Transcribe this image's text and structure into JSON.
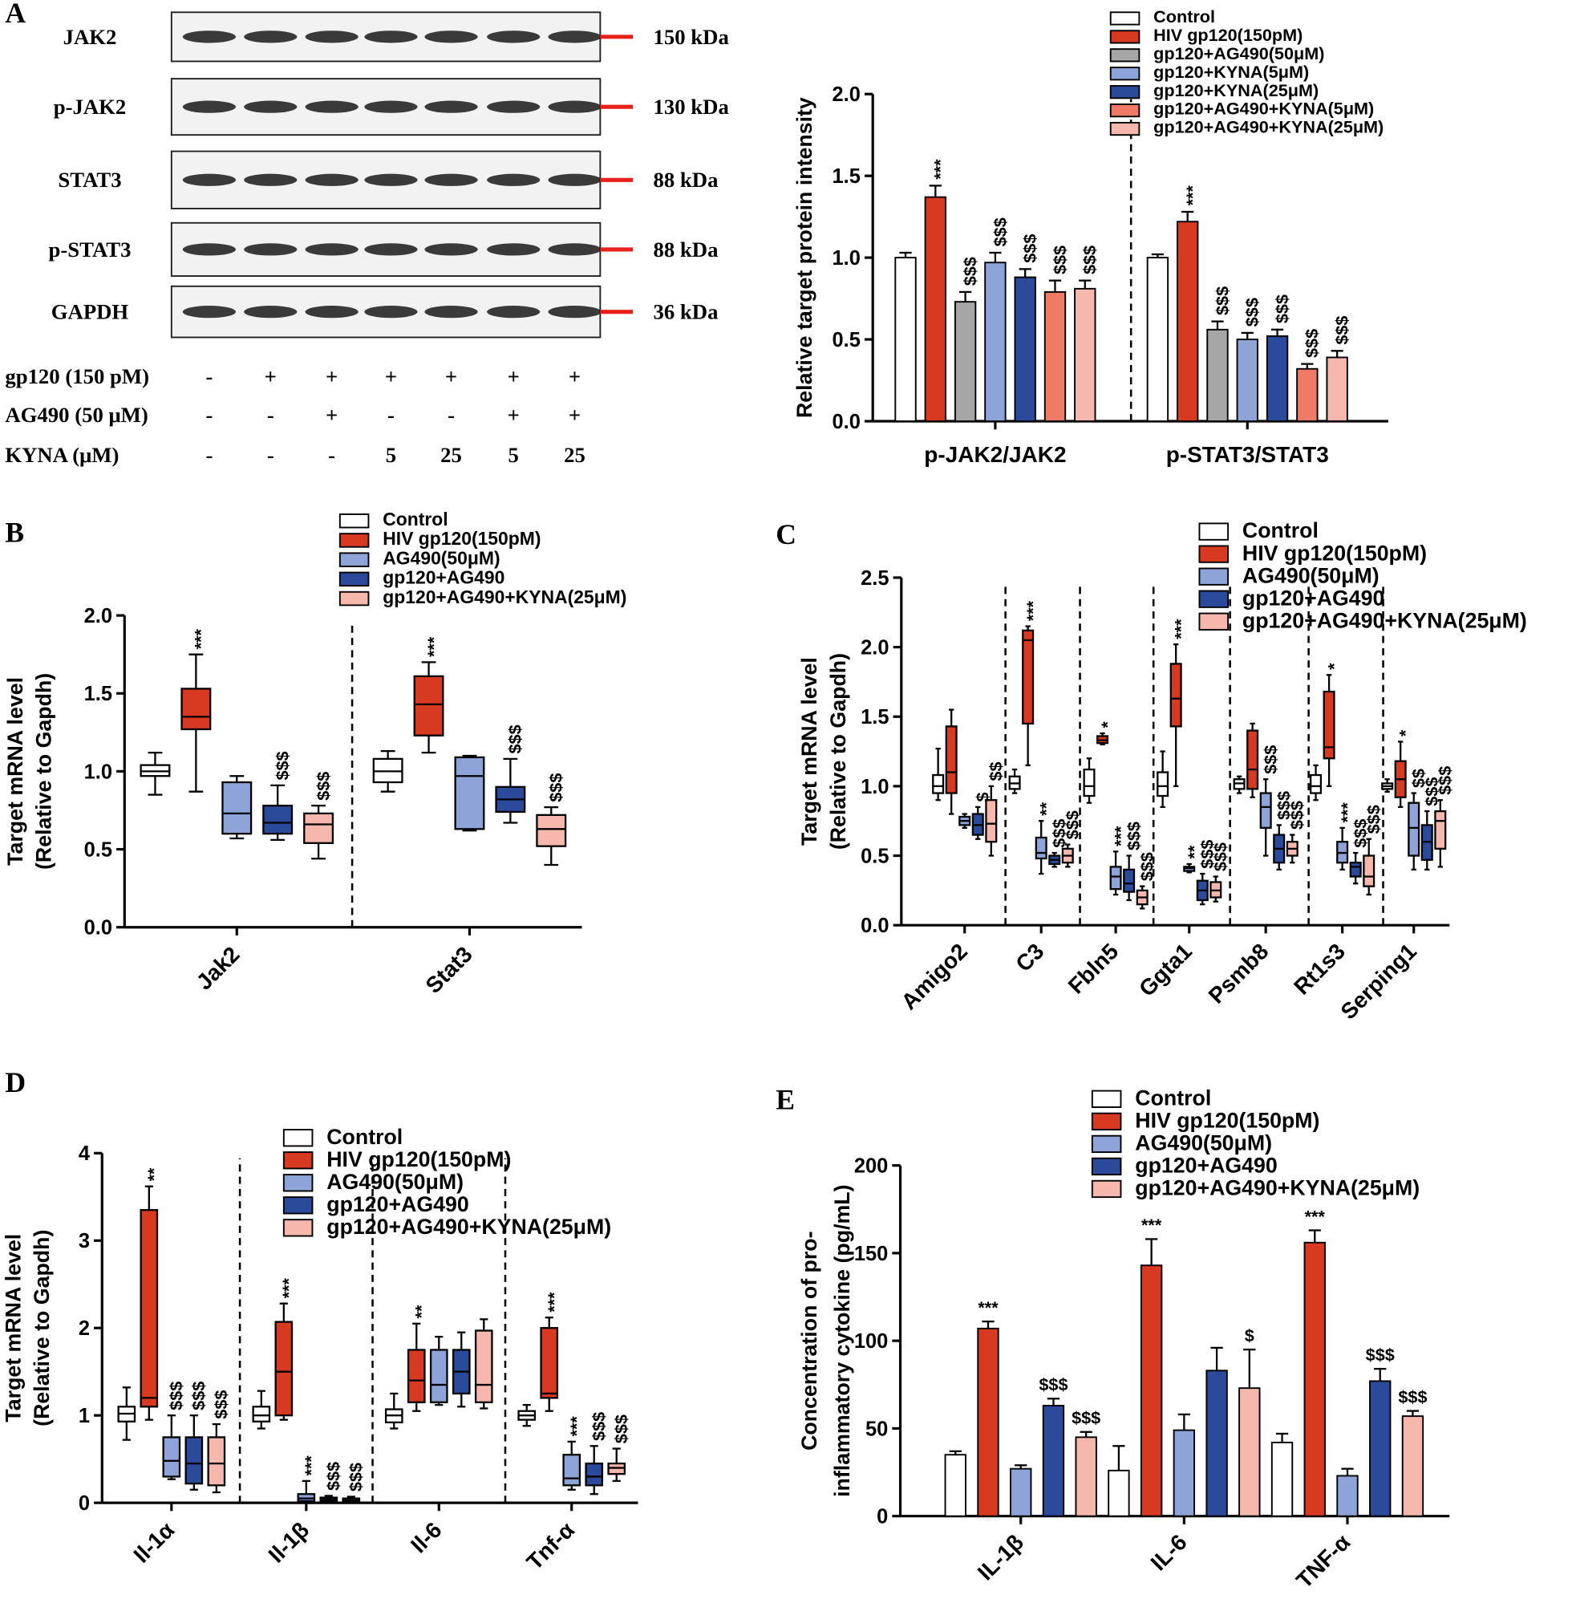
{
  "blot": {
    "proteins": [
      {
        "name": "JAK2",
        "size": "150 kDa"
      },
      {
        "name": "p-JAK2",
        "size": "130 kDa"
      },
      {
        "name": "STAT3",
        "size": "88 kDa"
      },
      {
        "name": "p-STAT3",
        "size": "88 kDa"
      },
      {
        "name": "GAPDH",
        "size": "36 kDa"
      }
    ],
    "treatments": [
      {
        "name": "gp120 (150 pM)",
        "lanes": [
          "-",
          "+",
          "+",
          "+",
          "+",
          "+",
          "+"
        ]
      },
      {
        "name": "AG490 (50 μM)",
        "lanes": [
          "-",
          "-",
          "+",
          "-",
          "-",
          "+",
          "+"
        ]
      },
      {
        "name": "KYNA (μM)",
        "lanes": [
          "-",
          "-",
          "-",
          "5",
          "25",
          "5",
          "25"
        ]
      }
    ]
  },
  "chart_data": [
    {
      "panel": "A",
      "type": "bar",
      "ylabel": [
        "Relative target protein intensity"
      ],
      "categories": [
        "p-JAK2/JAK2",
        "p-STAT3/STAT3"
      ],
      "ylim": [
        0,
        2
      ],
      "yticks": [
        {
          "value": 0,
          "label": "0.0"
        },
        0.5,
        {
          "value": 1,
          "label": "1.0"
        },
        1.5,
        {
          "value": 2,
          "label": "2.0"
        }
      ],
      "series": [
        {
          "name": "Control",
          "color": "#ffffff",
          "values": [
            1.0,
            1.0
          ],
          "errors": [
            0.03,
            0.02
          ],
          "annotations": [
            null,
            null
          ]
        },
        {
          "name": "HIV gp120(150pM)",
          "color": "#d73a20",
          "values": [
            1.37,
            1.22
          ],
          "errors": [
            0.07,
            0.06
          ],
          "annotations": [
            "***",
            "***"
          ]
        },
        {
          "name": "gp120+AG490(50μM)",
          "color": "#a6a6a6",
          "values": [
            0.73,
            0.56
          ],
          "errors": [
            0.06,
            0.05
          ],
          "annotations": [
            "$$$",
            "$$$"
          ]
        },
        {
          "name": "gp120+KYNA(5μM)",
          "color": "#8ea3d8",
          "values": [
            0.97,
            0.5
          ],
          "errors": [
            0.06,
            0.04
          ],
          "annotations": [
            "$$$",
            "$$$"
          ]
        },
        {
          "name": "gp120+KYNA(25μM)",
          "color": "#2c4a9a",
          "values": [
            0.88,
            0.52
          ],
          "errors": [
            0.05,
            0.04
          ],
          "annotations": [
            "$$$",
            "$$$"
          ]
        },
        {
          "name": "gp120+AG490+KYNA(5μM)",
          "color": "#ef7a65",
          "values": [
            0.79,
            0.32
          ],
          "errors": [
            0.07,
            0.03
          ],
          "annotations": [
            "$$$",
            "$$$"
          ]
        },
        {
          "name": "gp120+AG490+KYNA(25μM)",
          "color": "#f6b8ad",
          "values": [
            0.81,
            0.39
          ],
          "errors": [
            0.05,
            0.04
          ],
          "annotations": [
            "$$$",
            "$$$"
          ]
        }
      ]
    },
    {
      "panel": "B",
      "type": "box",
      "ylabel": [
        "Target mRNA level",
        "(Relative to Gapdh)"
      ],
      "categories": [
        "Jak2",
        "Stat3"
      ],
      "ylim": [
        0,
        2
      ],
      "yticks": [
        {
          "value": 0,
          "label": "0.0"
        },
        0.5,
        {
          "value": 1,
          "label": "1.0"
        },
        1.5,
        {
          "value": 2,
          "label": "2.0"
        }
      ],
      "series": [
        {
          "name": "Control",
          "color": "#ffffff",
          "values": [
            [
              0.85,
              0.97,
              1.0,
              1.04,
              1.12
            ],
            [
              0.87,
              0.93,
              1.0,
              1.08,
              1.13
            ]
          ],
          "annotations": [
            null,
            null
          ]
        },
        {
          "name": "HIV gp120(150pM)",
          "color": "#d73a20",
          "values": [
            [
              0.87,
              1.27,
              1.35,
              1.53,
              1.75
            ],
            [
              1.12,
              1.23,
              1.43,
              1.61,
              1.7
            ]
          ],
          "annotations": [
            "***",
            "***"
          ]
        },
        {
          "name": "AG490(50μM)",
          "color": "#8ea3d8",
          "values": [
            [
              0.57,
              0.6,
              0.73,
              0.93,
              0.97
            ],
            [
              0.62,
              0.63,
              0.97,
              1.09,
              1.1
            ]
          ],
          "annotations": [
            null,
            null
          ]
        },
        {
          "name": "gp120+AG490",
          "color": "#2c4a9a",
          "values": [
            [
              0.56,
              0.6,
              0.67,
              0.78,
              0.91
            ],
            [
              0.67,
              0.74,
              0.82,
              0.9,
              1.08
            ]
          ],
          "annotations": [
            "$$$",
            "$$$"
          ]
        },
        {
          "name": "gp120+AG490+KYNA(25μM)",
          "color": "#f6b8ad",
          "values": [
            [
              0.44,
              0.54,
              0.66,
              0.73,
              0.78
            ],
            [
              0.4,
              0.52,
              0.63,
              0.72,
              0.77
            ]
          ],
          "annotations": [
            "$$$",
            "$$$"
          ]
        }
      ]
    },
    {
      "panel": "C",
      "type": "box",
      "ylabel": [
        "Target mRNA level",
        "(Relative to Gapdh)"
      ],
      "categories": [
        "Amigo2",
        "C3",
        "Fbln5",
        "Ggta1",
        "Psmb8",
        "Rt1s3",
        "Serping1"
      ],
      "ylim": [
        0,
        2.5
      ],
      "yticks": [
        {
          "value": 0,
          "label": "0.0"
        },
        0.5,
        {
          "value": 1,
          "label": "1.0"
        },
        1.5,
        {
          "value": 2,
          "label": "2.0"
        },
        2.5
      ],
      "series": [
        {
          "name": "Control",
          "color": "#ffffff",
          "values": [
            [
              0.9,
              0.95,
              1.0,
              1.08,
              1.27
            ],
            [
              0.95,
              0.98,
              1.02,
              1.07,
              1.12
            ],
            [
              0.88,
              0.93,
              1.0,
              1.12,
              1.2
            ],
            [
              0.85,
              0.93,
              1.0,
              1.1,
              1.25
            ],
            [
              0.95,
              0.98,
              1.02,
              1.05,
              1.07
            ],
            [
              0.9,
              0.95,
              1.0,
              1.08,
              1.15
            ],
            [
              0.96,
              0.98,
              1.0,
              1.02,
              1.05
            ]
          ],
          "annotations": [
            null,
            null,
            null,
            null,
            null,
            null,
            null
          ]
        },
        {
          "name": "HIV gp120(150pM)",
          "color": "#d73a20",
          "values": [
            [
              0.8,
              0.95,
              1.1,
              1.43,
              1.55
            ],
            [
              1.15,
              1.45,
              2.05,
              2.12,
              2.15
            ],
            [
              1.3,
              1.31,
              1.33,
              1.36,
              1.38
            ],
            [
              1.0,
              1.43,
              1.63,
              1.88,
              2.02
            ],
            [
              0.92,
              0.98,
              1.12,
              1.4,
              1.45
            ],
            [
              1.0,
              1.2,
              1.28,
              1.68,
              1.8
            ],
            [
              0.85,
              0.92,
              1.05,
              1.18,
              1.32
            ]
          ],
          "annotations": [
            null,
            "***",
            "*",
            "***",
            null,
            "*",
            "*"
          ]
        },
        {
          "name": "AG490(50μM)",
          "color": "#8ea3d8",
          "values": [
            [
              0.7,
              0.72,
              0.75,
              0.78,
              0.8
            ],
            [
              0.37,
              0.48,
              0.52,
              0.63,
              0.75
            ],
            [
              0.22,
              0.26,
              0.35,
              0.42,
              0.53
            ],
            [
              0.38,
              0.39,
              0.41,
              0.42,
              0.44
            ],
            [
              0.5,
              0.7,
              0.85,
              0.95,
              1.05
            ],
            [
              0.4,
              0.45,
              0.52,
              0.6,
              0.7
            ],
            [
              0.4,
              0.5,
              0.7,
              0.88,
              0.95
            ]
          ],
          "annotations": [
            null,
            "**",
            "***",
            "**",
            "$$$",
            "***",
            "$$"
          ]
        },
        {
          "name": "gp120+AG490",
          "color": "#2c4a9a",
          "values": [
            [
              0.62,
              0.65,
              0.72,
              0.8,
              0.85
            ],
            [
              0.42,
              0.44,
              0.47,
              0.5,
              0.52
            ],
            [
              0.18,
              0.24,
              0.3,
              0.4,
              0.5
            ],
            [
              0.15,
              0.18,
              0.25,
              0.32,
              0.37
            ],
            [
              0.4,
              0.45,
              0.55,
              0.65,
              0.72
            ],
            [
              0.3,
              0.35,
              0.42,
              0.45,
              0.52
            ],
            [
              0.4,
              0.47,
              0.6,
              0.72,
              0.82
            ]
          ],
          "annotations": [
            "$",
            "$$$",
            "$$$",
            "$$$",
            "$$$",
            "$$$",
            "$$$"
          ]
        },
        {
          "name": "gp120+AG490+KYNA(25μM)",
          "color": "#f6b8ad",
          "values": [
            [
              0.5,
              0.6,
              0.73,
              0.9,
              1.0
            ],
            [
              0.42,
              0.45,
              0.5,
              0.55,
              0.58
            ],
            [
              0.12,
              0.15,
              0.2,
              0.25,
              0.28
            ],
            [
              0.17,
              0.2,
              0.25,
              0.31,
              0.35
            ],
            [
              0.45,
              0.5,
              0.55,
              0.6,
              0.65
            ],
            [
              0.22,
              0.28,
              0.35,
              0.5,
              0.62
            ],
            [
              0.42,
              0.55,
              0.75,
              0.82,
              0.9
            ]
          ],
          "annotations": [
            "$$",
            "$$$",
            "$$$",
            "$$$",
            "$$$",
            "$$$",
            "$$$"
          ]
        }
      ]
    },
    {
      "panel": "D",
      "type": "box",
      "ylabel": [
        "Target mRNA level",
        "(Relative to Gapdh)"
      ],
      "categories": [
        "Il-1α",
        "Il-1β",
        "Il-6",
        "Tnf-α"
      ],
      "ylim": [
        0,
        4
      ],
      "yticks": [
        0,
        1,
        2,
        3,
        4
      ],
      "series": [
        {
          "name": "Control",
          "color": "#ffffff",
          "values": [
            [
              0.72,
              0.93,
              1.02,
              1.1,
              1.32
            ],
            [
              0.85,
              0.93,
              1.0,
              1.1,
              1.28
            ],
            [
              0.85,
              0.92,
              1.0,
              1.07,
              1.25
            ],
            [
              0.88,
              0.95,
              1.0,
              1.05,
              1.12
            ]
          ],
          "annotations": [
            null,
            null,
            null,
            null
          ]
        },
        {
          "name": "HIV gp120(150pM)",
          "color": "#d73a20",
          "values": [
            [
              0.95,
              1.1,
              1.2,
              3.35,
              3.62
            ],
            [
              0.95,
              1.0,
              1.5,
              2.07,
              2.28
            ],
            [
              1.05,
              1.15,
              1.4,
              1.75,
              2.05
            ],
            [
              1.05,
              1.2,
              1.25,
              2.0,
              2.12
            ]
          ],
          "annotations": [
            "**",
            "***",
            "**",
            "***"
          ]
        },
        {
          "name": "AG490(50μM)",
          "color": "#8ea3d8",
          "values": [
            [
              0.27,
              0.3,
              0.48,
              0.75,
              1.0
            ],
            [
              0,
              0.02,
              0.05,
              0.1,
              0.25
            ],
            [
              1.12,
              1.15,
              1.35,
              1.75,
              1.9
            ],
            [
              0.15,
              0.2,
              0.28,
              0.55,
              0.7
            ]
          ],
          "annotations": [
            "$$$",
            "***",
            null,
            "***"
          ]
        },
        {
          "name": "gp120+AG490",
          "color": "#2c4a9a",
          "values": [
            [
              0.15,
              0.22,
              0.45,
              0.75,
              1.0
            ],
            [
              0.01,
              0.02,
              0.04,
              0.06,
              0.08
            ],
            [
              1.1,
              1.25,
              1.5,
              1.75,
              1.95
            ],
            [
              0.1,
              0.2,
              0.3,
              0.45,
              0.65
            ]
          ],
          "annotations": [
            "$$$",
            "$$$",
            null,
            "$$$"
          ]
        },
        {
          "name": "gp120+AG490+KYNA(25μM)",
          "color": "#f6b8ad",
          "values": [
            [
              0.12,
              0.2,
              0.45,
              0.75,
              0.9
            ],
            [
              0.01,
              0.02,
              0.03,
              0.05,
              0.07
            ],
            [
              1.08,
              1.15,
              1.35,
              1.97,
              2.1
            ],
            [
              0.25,
              0.33,
              0.4,
              0.45,
              0.62
            ]
          ],
          "annotations": [
            "$$$",
            "$$$",
            null,
            "$$$"
          ]
        }
      ]
    },
    {
      "panel": "E",
      "type": "bar",
      "ylabel": [
        "Concentration of pro-",
        "inflammatory cytokine (pg/mL)"
      ],
      "categories": [
        "IL-1β",
        "IL-6",
        "TNF-α"
      ],
      "ylim": [
        0,
        200
      ],
      "yticks": [
        0,
        50,
        100,
        150,
        200
      ],
      "series": [
        {
          "name": "Control",
          "color": "#ffffff",
          "values": [
            35,
            26,
            42
          ],
          "errors": [
            2,
            14,
            5
          ],
          "annotations": [
            null,
            null,
            null
          ]
        },
        {
          "name": "HIV gp120(150pM)",
          "color": "#d73a20",
          "values": [
            107,
            143,
            156
          ],
          "errors": [
            4,
            15,
            7
          ],
          "annotations": [
            "***",
            "***",
            "***"
          ]
        },
        {
          "name": "AG490(50μM)",
          "color": "#8ea3d8",
          "values": [
            27,
            49,
            23
          ],
          "errors": [
            2,
            9,
            4
          ],
          "annotations": [
            null,
            null,
            null
          ]
        },
        {
          "name": "gp120+AG490",
          "color": "#2c4a9a",
          "values": [
            63,
            83,
            77
          ],
          "errors": [
            4,
            13,
            7
          ],
          "annotations": [
            "$$$",
            null,
            "$$$"
          ]
        },
        {
          "name": "gp120+AG490+KYNA(25μM)",
          "color": "#f6b8ad",
          "values": [
            45,
            73,
            57
          ],
          "errors": [
            3,
            22,
            3
          ],
          "annotations": [
            "$$$",
            "$",
            "$$$"
          ]
        }
      ]
    }
  ]
}
